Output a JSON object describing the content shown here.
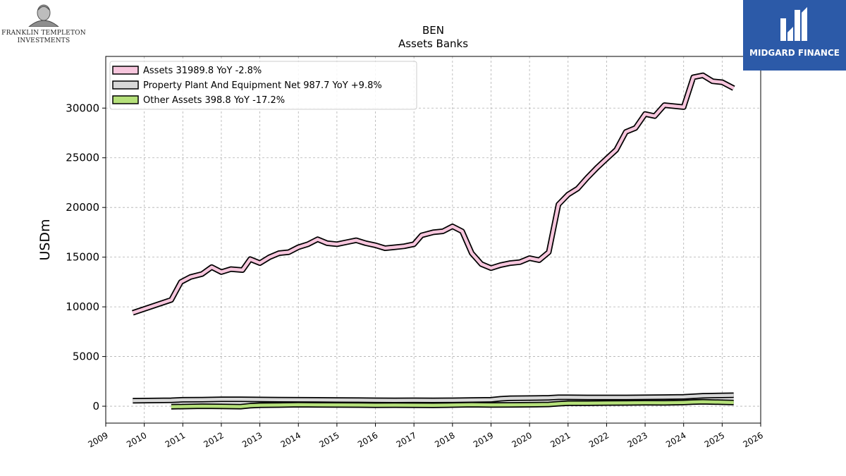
{
  "branding": {
    "left_logo_line1": "FRANKLIN TEMPLETON",
    "left_logo_line2": "INVESTMENTS",
    "right_logo_text": "MIDGARD FINANCE",
    "right_logo_bg": "#2c5aa8"
  },
  "chart_data": {
    "type": "line",
    "title": "BEN",
    "subtitle": "Assets Banks",
    "xlabel": "",
    "ylabel": "USDm",
    "xlim": [
      2009,
      2026
    ],
    "ylim": [
      -1700,
      35200
    ],
    "x_ticks": [
      "2009",
      "2010",
      "2011",
      "2012",
      "2013",
      "2014",
      "2015",
      "2016",
      "2017",
      "2018",
      "2019",
      "2020",
      "2021",
      "2022",
      "2023",
      "2024",
      "2025",
      "2026"
    ],
    "y_ticks": [
      "0",
      "5000",
      "10000",
      "15000",
      "20000",
      "25000",
      "30000"
    ],
    "grid": true,
    "legend_position": "top-left",
    "series": [
      {
        "name": "Assets",
        "legend_label": "Assets  31989.8 YoY -2.8%",
        "color": "#f7c6dd",
        "x": [
          2009.7,
          2010.7,
          2010.95,
          2011.2,
          2011.5,
          2011.75,
          2012.0,
          2012.25,
          2012.55,
          2012.75,
          2013.0,
          2013.25,
          2013.5,
          2013.75,
          2014.0,
          2014.25,
          2014.5,
          2014.75,
          2015.0,
          2015.25,
          2015.5,
          2015.75,
          2016.0,
          2016.25,
          2016.5,
          2016.75,
          2017.0,
          2017.2,
          2017.5,
          2017.75,
          2018.0,
          2018.25,
          2018.5,
          2018.75,
          2019.0,
          2019.25,
          2019.5,
          2019.75,
          2020.0,
          2020.25,
          2020.5,
          2020.75,
          2021.0,
          2021.25,
          2021.5,
          2021.75,
          2022.0,
          2022.25,
          2022.5,
          2022.75,
          2023.0,
          2023.25,
          2023.5,
          2023.75,
          2024.0,
          2024.25,
          2024.5,
          2024.75,
          2025.0,
          2025.3
        ],
        "values": [
          9400,
          10700,
          12500,
          13000,
          13300,
          14000,
          13500,
          13800,
          13700,
          14800,
          14400,
          15000,
          15400,
          15500,
          16000,
          16300,
          16800,
          16400,
          16300,
          16500,
          16700,
          16400,
          16200,
          15900,
          16000,
          16100,
          16300,
          17200,
          17500,
          17600,
          18100,
          17600,
          15400,
          14300,
          13900,
          14200,
          14400,
          14500,
          14900,
          14700,
          15500,
          20300,
          21300,
          21900,
          23000,
          24000,
          24900,
          25800,
          27600,
          28000,
          29400,
          29200,
          30300,
          30200,
          30100,
          33100,
          33300,
          32700,
          32600,
          32000
        ]
      },
      {
        "name": "Property Plant And Equipment Net",
        "legend_label": "Property Plant And Equipment Net  987.7 YoY +9.8%",
        "color": "#d8d8d8",
        "x": [
          2009.7,
          2010.7,
          2011.0,
          2011.5,
          2012.0,
          2012.5,
          2013.0,
          2013.5,
          2014.0,
          2014.5,
          2015.0,
          2015.5,
          2016.0,
          2016.5,
          2017.0,
          2017.5,
          2018.0,
          2018.5,
          2019.0,
          2019.25,
          2019.5,
          2020.0,
          2020.5,
          2020.75,
          2021.0,
          2021.5,
          2022.0,
          2022.5,
          2023.0,
          2023.5,
          2024.0,
          2024.25,
          2024.5,
          2025.0,
          2025.3
        ],
        "values": [
          550,
          600,
          650,
          660,
          700,
          690,
          680,
          660,
          650,
          640,
          620,
          610,
          600,
          590,
          600,
          590,
          600,
          620,
          650,
          750,
          800,
          820,
          850,
          900,
          900,
          880,
          880,
          880,
          900,
          920,
          950,
          1000,
          1050,
          1080,
          1100
        ]
      },
      {
        "name": "Other Assets",
        "legend_label": "Other Assets  398.8 YoY -17.2%",
        "color": "#b5e07a",
        "x": [
          2010.7,
          2011.0,
          2011.5,
          2012.0,
          2012.5,
          2012.75,
          2013.0,
          2013.5,
          2014.0,
          2014.5,
          2015.0,
          2015.5,
          2016.0,
          2016.5,
          2017.0,
          2017.5,
          2018.0,
          2018.5,
          2019.0,
          2019.5,
          2020.0,
          2020.5,
          2020.75,
          2021.0,
          2021.5,
          2022.0,
          2022.5,
          2023.0,
          2023.5,
          2024.0,
          2024.25,
          2024.5,
          2025.0,
          2025.3
        ],
        "values": [
          -50,
          -30,
          0,
          -20,
          -40,
          50,
          100,
          120,
          150,
          140,
          130,
          120,
          100,
          110,
          100,
          90,
          120,
          150,
          130,
          140,
          150,
          180,
          250,
          300,
          300,
          320,
          330,
          350,
          340,
          380,
          420,
          450,
          400,
          380
        ]
      }
    ]
  }
}
